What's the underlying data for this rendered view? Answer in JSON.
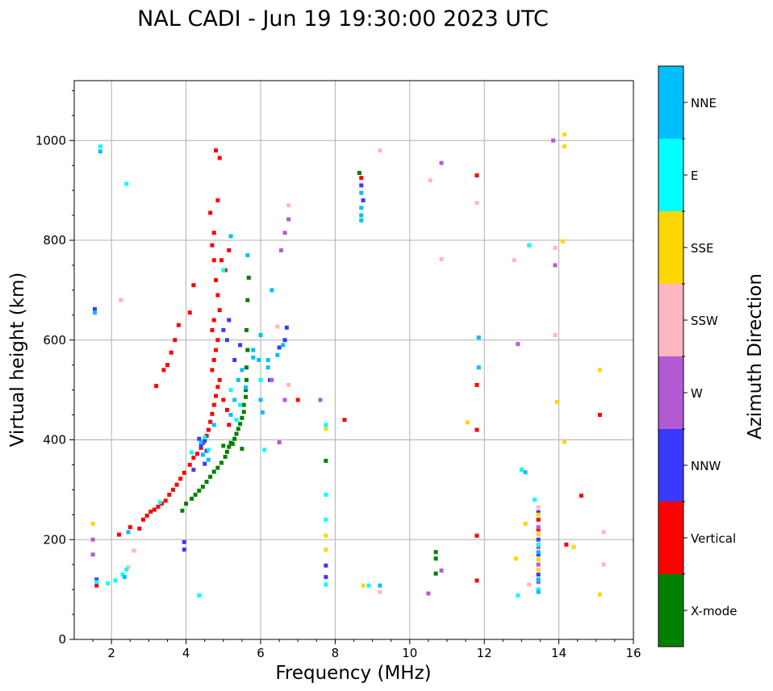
{
  "chart_data": {
    "type": "scatter",
    "title": "NAL CADI - Jun 19 19:30:00 2023 UTC",
    "xlabel": "Frequency (MHz)",
    "ylabel": "Virtual height (km)",
    "xlim": [
      1,
      16
    ],
    "ylim": [
      0,
      1120
    ],
    "xticks": [
      2,
      4,
      6,
      8,
      10,
      12,
      14,
      16
    ],
    "yticks": [
      0,
      200,
      400,
      600,
      800,
      1000
    ],
    "grid": true,
    "colorbar": {
      "label": "Azimuth Direction",
      "categories": [
        {
          "name": "X-mode",
          "color": "#008000"
        },
        {
          "name": "Vertical",
          "color": "#ff0000"
        },
        {
          "name": "NNW",
          "color": "#3a3aff"
        },
        {
          "name": "W",
          "color": "#b45ad4"
        },
        {
          "name": "SSW",
          "color": "#ffb6c1"
        },
        {
          "name": "SSE",
          "color": "#ffd700"
        },
        {
          "name": "E",
          "color": "#00ffff"
        },
        {
          "name": "NNE",
          "color": "#00bfff"
        }
      ]
    },
    "series": [
      {
        "name": "X-mode",
        "points": [
          [
            3.9,
            258
          ],
          [
            4.0,
            272
          ],
          [
            4.15,
            282
          ],
          [
            4.25,
            290
          ],
          [
            4.35,
            298
          ],
          [
            4.45,
            306
          ],
          [
            4.55,
            316
          ],
          [
            4.65,
            326
          ],
          [
            4.75,
            336
          ],
          [
            4.85,
            344
          ],
          [
            4.95,
            354
          ],
          [
            5.05,
            366
          ],
          [
            5.1,
            376
          ],
          [
            5.15,
            386
          ],
          [
            5.2,
            394
          ],
          [
            5.3,
            402
          ],
          [
            5.35,
            412
          ],
          [
            5.4,
            422
          ],
          [
            5.45,
            432
          ],
          [
            5.5,
            444
          ],
          [
            5.55,
            456
          ],
          [
            5.55,
            470
          ],
          [
            5.6,
            486
          ],
          [
            5.6,
            500
          ],
          [
            5.62,
            520
          ],
          [
            5.62,
            545
          ],
          [
            5.65,
            580
          ],
          [
            5.62,
            620
          ],
          [
            5.65,
            680
          ],
          [
            5.68,
            725
          ],
          [
            5.5,
            382
          ],
          [
            5.0,
            388
          ],
          [
            5.25,
            392
          ],
          [
            7.75,
            358
          ],
          [
            8.65,
            935
          ],
          [
            10.7,
            162
          ],
          [
            10.7,
            175
          ],
          [
            10.7,
            132
          ]
        ]
      },
      {
        "name": "Vertical",
        "points": [
          [
            1.6,
            108
          ],
          [
            2.2,
            210
          ],
          [
            2.5,
            225
          ],
          [
            2.75,
            222
          ],
          [
            2.85,
            240
          ],
          [
            2.95,
            248
          ],
          [
            3.05,
            256
          ],
          [
            3.15,
            260
          ],
          [
            3.25,
            266
          ],
          [
            3.35,
            272
          ],
          [
            3.45,
            278
          ],
          [
            3.55,
            290
          ],
          [
            3.65,
            300
          ],
          [
            3.75,
            310
          ],
          [
            3.85,
            322
          ],
          [
            3.95,
            334
          ],
          [
            4.1,
            350
          ],
          [
            4.2,
            364
          ],
          [
            4.3,
            372
          ],
          [
            4.4,
            384
          ],
          [
            4.45,
            394
          ],
          [
            4.55,
            408
          ],
          [
            4.6,
            420
          ],
          [
            4.65,
            436
          ],
          [
            4.7,
            452
          ],
          [
            4.75,
            470
          ],
          [
            4.8,
            488
          ],
          [
            4.85,
            506
          ],
          [
            4.9,
            520
          ],
          [
            4.7,
            540
          ],
          [
            4.75,
            560
          ],
          [
            4.8,
            580
          ],
          [
            4.85,
            600
          ],
          [
            4.7,
            620
          ],
          [
            4.75,
            640
          ],
          [
            4.9,
            660
          ],
          [
            4.85,
            690
          ],
          [
            4.8,
            720
          ],
          [
            4.75,
            760
          ],
          [
            4.7,
            790
          ],
          [
            4.75,
            815
          ],
          [
            4.85,
            880
          ],
          [
            4.8,
            980
          ],
          [
            4.9,
            965
          ],
          [
            4.65,
            855
          ],
          [
            4.2,
            710
          ],
          [
            3.8,
            630
          ],
          [
            3.7,
            600
          ],
          [
            3.6,
            575
          ],
          [
            3.5,
            550
          ],
          [
            3.4,
            540
          ],
          [
            3.2,
            508
          ],
          [
            4.1,
            655
          ],
          [
            5.0,
            480
          ],
          [
            5.1,
            460
          ],
          [
            5.15,
            430
          ],
          [
            4.95,
            760
          ],
          [
            5.05,
            740
          ],
          [
            5.15,
            780
          ],
          [
            7.0,
            480
          ],
          [
            8.25,
            440
          ],
          [
            8.7,
            925
          ],
          [
            11.8,
            930
          ],
          [
            11.8,
            510
          ],
          [
            11.8,
            420
          ],
          [
            11.8,
            208
          ],
          [
            11.8,
            118
          ],
          [
            13.45,
            220
          ],
          [
            13.45,
            240
          ],
          [
            14.2,
            190
          ],
          [
            14.6,
            288
          ],
          [
            15.1,
            450
          ]
        ]
      },
      {
        "name": "NNW",
        "points": [
          [
            1.55,
            662
          ],
          [
            1.6,
            120
          ],
          [
            3.95,
            180
          ],
          [
            3.95,
            195
          ],
          [
            4.35,
            402
          ],
          [
            4.5,
            398
          ],
          [
            4.4,
            388
          ],
          [
            4.55,
            378
          ],
          [
            4.5,
            352
          ],
          [
            4.2,
            340
          ],
          [
            5.0,
            620
          ],
          [
            5.1,
            600
          ],
          [
            5.15,
            640
          ],
          [
            5.3,
            560
          ],
          [
            5.45,
            590
          ],
          [
            6.25,
            520
          ],
          [
            6.5,
            585
          ],
          [
            6.65,
            600
          ],
          [
            6.7,
            625
          ],
          [
            8.7,
            910
          ],
          [
            8.75,
            880
          ],
          [
            13.45,
            130
          ],
          [
            13.45,
            170
          ],
          [
            13.45,
            200
          ],
          [
            13.45,
            255
          ],
          [
            7.75,
            125
          ],
          [
            7.75,
            148
          ]
        ]
      },
      {
        "name": "W",
        "points": [
          [
            1.5,
            200
          ],
          [
            1.5,
            170
          ],
          [
            6.5,
            395
          ],
          [
            6.65,
            480
          ],
          [
            6.55,
            780
          ],
          [
            6.65,
            815
          ],
          [
            6.75,
            842
          ],
          [
            7.6,
            480
          ],
          [
            10.5,
            92
          ],
          [
            10.85,
            138
          ],
          [
            10.85,
            955
          ],
          [
            12.9,
            592
          ],
          [
            13.85,
            1000
          ],
          [
            13.9,
            750
          ],
          [
            13.45,
            115
          ],
          [
            13.45,
            150
          ],
          [
            13.45,
            185
          ],
          [
            13.45,
            225
          ],
          [
            6.3,
            520
          ]
        ]
      },
      {
        "name": "SSW",
        "points": [
          [
            2.25,
            680
          ],
          [
            2.45,
            145
          ],
          [
            2.6,
            178
          ],
          [
            6.45,
            627
          ],
          [
            6.75,
            510
          ],
          [
            6.75,
            870
          ],
          [
            9.2,
            980
          ],
          [
            9.2,
            95
          ],
          [
            10.55,
            920
          ],
          [
            10.85,
            762
          ],
          [
            11.8,
            875
          ],
          [
            12.8,
            760
          ],
          [
            13.9,
            610
          ],
          [
            13.9,
            785
          ],
          [
            15.2,
            215
          ],
          [
            15.2,
            150
          ],
          [
            13.2,
            110
          ],
          [
            13.45,
            265
          ]
        ]
      },
      {
        "name": "SSE",
        "points": [
          [
            1.5,
            232
          ],
          [
            7.75,
            422
          ],
          [
            7.75,
            208
          ],
          [
            7.75,
            180
          ],
          [
            8.75,
            108
          ],
          [
            11.55,
            435
          ],
          [
            12.85,
            162
          ],
          [
            13.1,
            232
          ],
          [
            13.45,
            140
          ],
          [
            13.45,
            160
          ],
          [
            13.45,
            210
          ],
          [
            13.45,
            250
          ],
          [
            14.15,
            1012
          ],
          [
            14.15,
            988
          ],
          [
            14.1,
            798
          ],
          [
            13.95,
            476
          ],
          [
            14.15,
            396
          ],
          [
            14.4,
            185
          ],
          [
            15.1,
            540
          ],
          [
            15.1,
            90
          ]
        ]
      },
      {
        "name": "E",
        "points": [
          [
            1.7,
            988
          ],
          [
            2.4,
            913
          ],
          [
            1.6,
            115
          ],
          [
            1.9,
            112
          ],
          [
            2.1,
            118
          ],
          [
            2.3,
            130
          ],
          [
            2.4,
            140
          ],
          [
            3.3,
            275
          ],
          [
            4.15,
            375
          ],
          [
            4.5,
            405
          ],
          [
            4.6,
            380
          ],
          [
            5.35,
            440
          ],
          [
            5.45,
            470
          ],
          [
            5.2,
            500
          ],
          [
            5.0,
            740
          ],
          [
            5.35,
            440
          ],
          [
            6.0,
            520
          ],
          [
            6.1,
            380
          ],
          [
            7.75,
            430
          ],
          [
            7.75,
            240
          ],
          [
            7.75,
            290
          ],
          [
            7.75,
            110
          ],
          [
            8.9,
            108
          ],
          [
            12.9,
            88
          ],
          [
            13.35,
            280
          ],
          [
            13.45,
            100
          ],
          [
            13.45,
            190
          ],
          [
            4.35,
            88
          ],
          [
            13.2,
            790
          ],
          [
            13.0,
            340
          ]
        ]
      },
      {
        "name": "NNE",
        "points": [
          [
            1.7,
            978
          ],
          [
            1.55,
            655
          ],
          [
            2.35,
            125
          ],
          [
            2.45,
            215
          ],
          [
            4.4,
            395
          ],
          [
            4.45,
            370
          ],
          [
            4.6,
            360
          ],
          [
            4.75,
            430
          ],
          [
            5.2,
            450
          ],
          [
            5.3,
            480
          ],
          [
            5.4,
            520
          ],
          [
            5.5,
            540
          ],
          [
            5.6,
            505
          ],
          [
            5.8,
            580
          ],
          [
            5.95,
            560
          ],
          [
            6.0,
            610
          ],
          [
            6.0,
            480
          ],
          [
            6.2,
            545
          ],
          [
            6.2,
            560
          ],
          [
            6.3,
            700
          ],
          [
            6.45,
            570
          ],
          [
            6.6,
            590
          ],
          [
            5.65,
            770
          ],
          [
            5.2,
            808
          ],
          [
            8.7,
            850
          ],
          [
            8.7,
            865
          ],
          [
            8.7,
            895
          ],
          [
            8.7,
            840
          ],
          [
            9.2,
            108
          ],
          [
            11.85,
            605
          ],
          [
            11.85,
            545
          ],
          [
            13.45,
            120
          ],
          [
            13.45,
            95
          ],
          [
            13.45,
            175
          ],
          [
            13.1,
            335
          ],
          [
            5.8,
            565
          ],
          [
            6.05,
            455
          ]
        ]
      }
    ]
  }
}
